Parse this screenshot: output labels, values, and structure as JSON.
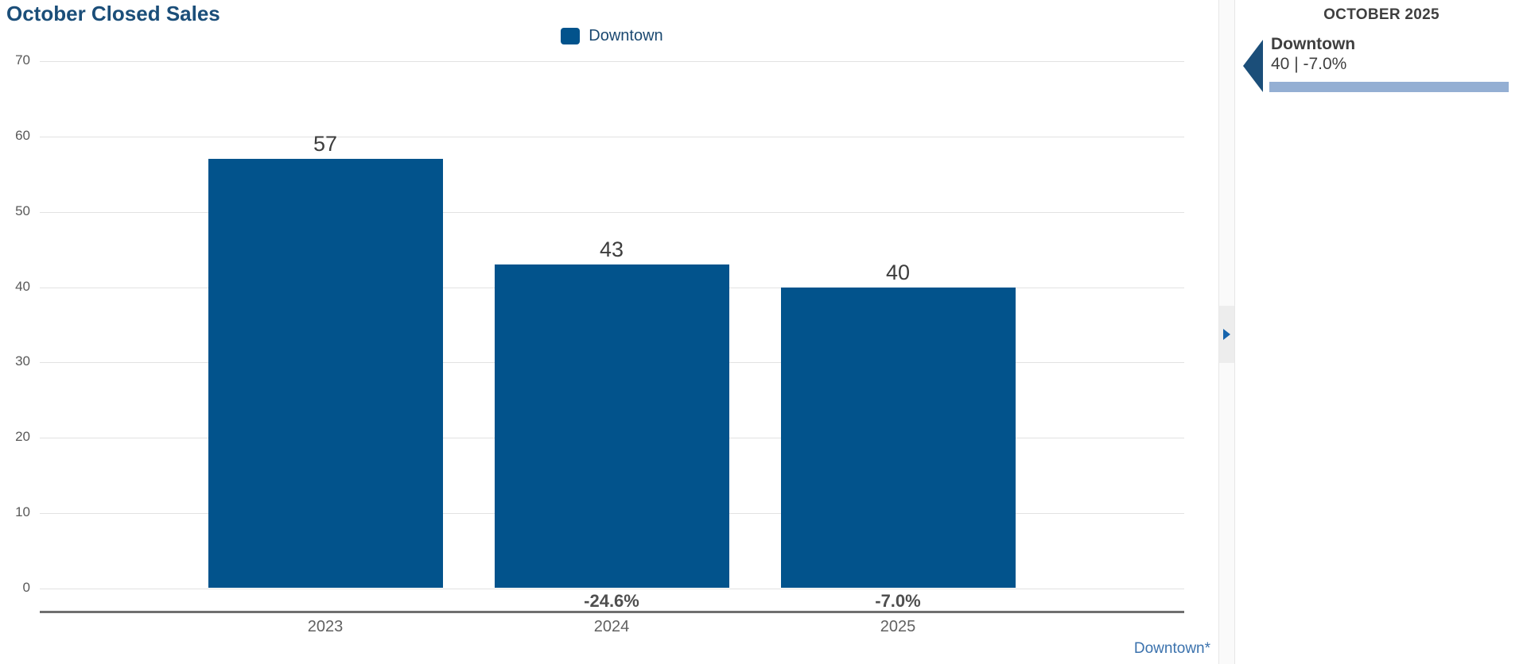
{
  "title": "October Closed Sales",
  "legend": {
    "label": "Downtown"
  },
  "chart_data": {
    "type": "bar",
    "title": "October Closed Sales",
    "categories": [
      "2023",
      "2024",
      "2025"
    ],
    "series": [
      {
        "name": "Downtown",
        "values": [
          57,
          43,
          40
        ]
      }
    ],
    "value_labels": [
      "57",
      "43",
      "40"
    ],
    "pct_change_labels": [
      "",
      "-24.6%",
      "-7.0%"
    ],
    "yticks": [
      0,
      10,
      20,
      30,
      40,
      50,
      60,
      70
    ],
    "ylim": [
      0,
      70
    ],
    "xlabel": "",
    "ylabel": "",
    "grid": "horizontal",
    "legend_position": "top-center",
    "bar_color": "#02538c"
  },
  "footnote": {
    "label": "Downtown*"
  },
  "splitter": {
    "state": "expand"
  },
  "sidebar": {
    "title": "OCTOBER 2025",
    "items": [
      {
        "name": "Downtown",
        "stats": "40 | -7.0%",
        "direction": "down"
      }
    ]
  },
  "colors": {
    "bar_blue": "#02538c",
    "title_blue": "#1b4e79",
    "link_blue": "#3b72ad",
    "panel_bar_blue": "#94afd3",
    "expand_arrow_blue": "#1664ad"
  }
}
